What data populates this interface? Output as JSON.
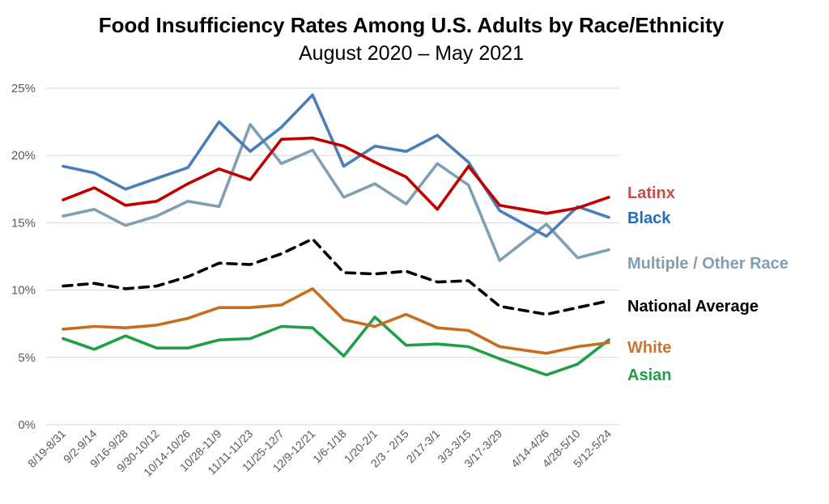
{
  "chart_data": {
    "type": "line",
    "title": "Food Insufficiency Rates Among U.S. Adults by Race/Ethnicity",
    "subtitle": "August 2020 – May 2021",
    "xlabel": "",
    "ylabel": "",
    "ylim": [
      0,
      25
    ],
    "yticks": [
      "0%",
      "5%",
      "10%",
      "15%",
      "20%",
      "25%"
    ],
    "grid": true,
    "legend_position": "right (inline labels)",
    "categories": [
      "8/19-8/31",
      "9/2-9/14",
      "9/16-9/28",
      "9/30-10/12",
      "10/14-10/26",
      "10/28-11/9",
      "11/11-11/23",
      "11/25-12/7",
      "12/9-12/21",
      "1/6-1/18",
      "1/20-2/1",
      "2/3 - 2/15",
      "2/17-3/1",
      "3/3-3/15",
      "3/17-3/29",
      "4/14-4/26",
      "4/28-5/10",
      "5/12-5/24"
    ],
    "x_positions": [
      0,
      1,
      2,
      3,
      4,
      5,
      6,
      7,
      8,
      9,
      10,
      11,
      12,
      13,
      14,
      15.5,
      16.5,
      17.5
    ],
    "x_range": [
      0,
      17.5
    ],
    "series": [
      {
        "name": "Latinx",
        "color": "#c00000",
        "dashed": false,
        "values": [
          16.7,
          17.6,
          16.3,
          16.6,
          17.9,
          19.0,
          18.2,
          21.2,
          21.3,
          20.7,
          19.5,
          18.4,
          16.0,
          19.2,
          16.3,
          15.7,
          16.1,
          16.9
        ]
      },
      {
        "name": "Black",
        "color": "#4a7ebb",
        "dashed": false,
        "values": [
          19.2,
          18.7,
          17.5,
          18.3,
          19.1,
          22.5,
          20.3,
          22.1,
          24.5,
          19.2,
          20.7,
          20.3,
          21.5,
          19.5,
          15.9,
          14.0,
          16.2,
          15.4
        ]
      },
      {
        "name": "Multiple / Other Race",
        "color": "#7f9fb2",
        "dashed": false,
        "values": [
          15.5,
          16.0,
          14.8,
          15.5,
          16.6,
          16.2,
          22.3,
          19.4,
          20.4,
          16.9,
          17.9,
          16.4,
          19.4,
          17.8,
          12.2,
          14.9,
          12.4,
          13.0
        ]
      },
      {
        "name": "National Average",
        "color": "#000000",
        "dashed": true,
        "values": [
          10.3,
          10.5,
          10.1,
          10.3,
          11.0,
          12.0,
          11.9,
          12.7,
          13.8,
          11.3,
          11.2,
          11.4,
          10.6,
          10.7,
          8.8,
          8.2,
          8.7,
          9.2
        ]
      },
      {
        "name": "White",
        "color": "#c86d1e",
        "dashed": false,
        "values": [
          7.1,
          7.3,
          7.2,
          7.4,
          7.9,
          8.7,
          8.7,
          8.9,
          10.1,
          7.8,
          7.3,
          8.2,
          7.2,
          7.0,
          5.8,
          5.3,
          5.8,
          6.1
        ]
      },
      {
        "name": "Asian",
        "color": "#1fa046",
        "dashed": false,
        "values": [
          6.4,
          5.6,
          6.6,
          5.7,
          5.7,
          6.3,
          6.4,
          7.3,
          7.2,
          5.1,
          8.0,
          5.9,
          6.0,
          5.8,
          4.9,
          3.7,
          4.5,
          6.3
        ]
      }
    ],
    "legend": [
      {
        "label": "Latinx",
        "color": "#c0504d"
      },
      {
        "label": "Black",
        "color": "#1f6fbf"
      },
      {
        "label": "Multiple / Other Race",
        "color": "#7f9fb2"
      },
      {
        "label": "National Average",
        "color": "#000000"
      },
      {
        "label": "White",
        "color": "#d0742a"
      },
      {
        "label": "Asian",
        "color": "#1fa046"
      }
    ]
  }
}
